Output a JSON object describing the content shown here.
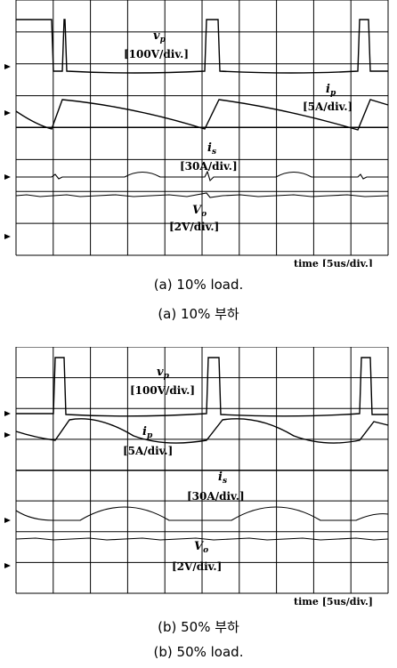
{
  "chart_data": [
    {
      "type": "line",
      "panel": "a",
      "caption_en": "(a) 10% load.",
      "caption_ko": "(a) 10% 부하",
      "time_label": "time [5us/div.]",
      "grid": true,
      "channels": [
        {
          "symbol": "v",
          "sub": "p",
          "scale": "[100V/div.]"
        },
        {
          "symbol": "i",
          "sub": "p",
          "scale": "[5A/div.]"
        },
        {
          "symbol": "i",
          "sub": "s",
          "scale": "[30A/div.]"
        },
        {
          "symbol": "V",
          "sub": "o",
          "scale": "[2V/div.]"
        }
      ]
    },
    {
      "type": "line",
      "panel": "b",
      "caption_en": "(b) 50% load.",
      "caption_ko": "(b) 50% 부하",
      "time_label": "time [5us/div.]",
      "grid": true,
      "channels": [
        {
          "symbol": "v",
          "sub": "p",
          "scale": "[100V/div.]"
        },
        {
          "symbol": "i",
          "sub": "p",
          "scale": "[5A/div.]"
        },
        {
          "symbol": "i",
          "sub": "s",
          "scale": "[30A/div.]"
        },
        {
          "symbol": "V",
          "sub": "o",
          "scale": "[2V/div.]"
        }
      ]
    }
  ]
}
